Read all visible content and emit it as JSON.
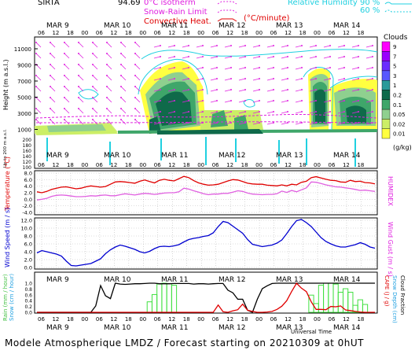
{
  "header": {
    "site": "SIRTA",
    "coords": "94.69",
    "isotherm_label": "0°C isotherm",
    "snow_rain_label": "Snow-Rain Limit",
    "convective_label": "Convective Heat.",
    "convective_unit": "(°C/minute)",
    "rh_label": "Relative Humidity",
    "rh_90": "90 %",
    "rh_60": "60 %"
  },
  "footer": "Modele Atmospherique LMDZ / Forecast starting on 20210309 at 0hUT",
  "xaxis": {
    "day_labels": [
      "MAR  9",
      "MAR 10",
      "MAR 11",
      "MAR 12",
      "MAR 13",
      "MAR 14"
    ],
    "hour_labels": [
      "06",
      "12",
      "18",
      "00",
      "06",
      "12",
      "18",
      "00",
      "06",
      "12",
      "18",
      "00",
      "06",
      "12",
      "18",
      "00",
      "06",
      "12",
      "18",
      "00",
      "06",
      "12",
      "18"
    ],
    "bottom_title": "Universal Time"
  },
  "panels": {
    "clouds": {
      "ylabel": "Height  (m a.s.l.)",
      "ylabel_low": "Up to 200 m a.s.l.",
      "yticks_upper": [
        "11000",
        "9000",
        "7000",
        "5000",
        "3000",
        "1000"
      ],
      "yticks_lower": [
        "200",
        "180",
        "160",
        "140",
        "120",
        "100"
      ],
      "colorbar_title": "Clouds",
      "colorbar_labels": [
        "9",
        "7",
        "5",
        "3",
        "1",
        "0.2",
        "0.1",
        "0.05",
        "0.02",
        "0.01"
      ],
      "colorbar_unit": "(g/kg)",
      "colorbar_colors": [
        "#ff00ff",
        "#9a00ff",
        "#6a2cff",
        "#5858ff",
        "#2a9a9a",
        "#0f6a4a",
        "#3fa66a",
        "#8fd08f",
        "#ccee66",
        "#ffff40"
      ]
    },
    "temperature": {
      "ylabel": "Temperature (°C)",
      "ylabel_right": "HUMIDEX",
      "yticks": [
        "8.0",
        "6.0",
        "4.0",
        "2.0",
        "0.0",
        "-2.0",
        "-4.0"
      ]
    },
    "wind": {
      "ylabel": "Wind Speed  (m / s)",
      "ylabel_right": "Wind Gust  (m / s)",
      "yticks": [
        "12.0",
        "10.0",
        "8.0",
        "6.0",
        "4.0",
        "2.0",
        "0.0"
      ]
    },
    "precip": {
      "ylabel_rain": "Rain (mm / hour)",
      "ylabel_snow": "Snow (cm / hour)",
      "ylabel_cape": "CAPE (J / g)",
      "ylabel_snowdepth": "Snow Depth (cm)",
      "ylabel_cloudfrac": "Cloud Fraction",
      "yticks": [
        "1.0",
        "0.8",
        "0.6",
        "0.4",
        "0.2",
        "0.0"
      ]
    }
  },
  "chart_data": [
    {
      "type": "line",
      "title": "",
      "xlabel": "",
      "ylabel": "Temperature (°C)",
      "ylim": [
        -4,
        8
      ],
      "series": [
        {
          "name": "Temperature",
          "color": "#e00000",
          "values": [
            2.3,
            2.0,
            2.4,
            3.0,
            3.4,
            3.7,
            3.8,
            3.5,
            3.2,
            3.4,
            3.8,
            4.1,
            3.9,
            3.7,
            3.9,
            4.6,
            5.3,
            5.4,
            5.3,
            5.1,
            4.9,
            5.5,
            5.9,
            5.4,
            5.0,
            5.8,
            6.1,
            5.8,
            5.6,
            6.3,
            7.0,
            6.6,
            5.7,
            5.0,
            4.6,
            4.3,
            4.4,
            4.6,
            5.1,
            5.6,
            6.0,
            5.9,
            5.4,
            4.9,
            4.7,
            4.6,
            4.6,
            4.3,
            4.2,
            4.1,
            4.4,
            4.1,
            4.6,
            4.4,
            5.2,
            5.5,
            6.6,
            6.9,
            6.5,
            6.1,
            5.8,
            5.7,
            5.3,
            5.2,
            5.8,
            5.4,
            5.5,
            5.1,
            5.0,
            4.7
          ]
        },
        {
          "name": "HUMIDEX",
          "color": "#e060e0",
          "values": [
            -0.2,
            0.0,
            0.3,
            0.9,
            1.2,
            1.3,
            1.2,
            1.0,
            0.8,
            0.8,
            0.9,
            1.1,
            1.0,
            1.2,
            1.3,
            1.1,
            1.1,
            1.4,
            1.7,
            1.5,
            1.3,
            1.6,
            1.8,
            1.7,
            1.5,
            1.7,
            1.9,
            2.0,
            2.0,
            2.3,
            3.4,
            3.1,
            2.6,
            2.2,
            1.7,
            1.4,
            1.6,
            1.6,
            1.8,
            1.8,
            2.2,
            2.6,
            2.4,
            1.9,
            1.6,
            1.5,
            1.4,
            1.5,
            1.5,
            1.7,
            2.5,
            2.1,
            2.7,
            2.3,
            2.9,
            3.5,
            5.3,
            5.2,
            4.8,
            4.4,
            4.1,
            3.8,
            3.7,
            3.5,
            3.3,
            3.0,
            2.7,
            2.8,
            2.6,
            2.4
          ]
        }
      ]
    },
    {
      "type": "line",
      "title": "",
      "xlabel": "",
      "ylabel": "Wind Speed  (m / s)",
      "ylim": [
        0,
        12
      ],
      "series": [
        {
          "name": "Wind Speed",
          "color": "#0000d0",
          "values": [
            3.7,
            4.3,
            4.0,
            3.7,
            3.4,
            2.9,
            1.6,
            0.5,
            0.4,
            0.6,
            0.8,
            1.0,
            1.6,
            2.2,
            3.5,
            4.5,
            5.2,
            5.7,
            5.4,
            5.0,
            4.6,
            4.0,
            3.7,
            4.1,
            4.8,
            5.3,
            5.4,
            5.3,
            5.5,
            5.8,
            6.5,
            7.1,
            7.4,
            7.6,
            7.9,
            8.1,
            8.8,
            10.4,
            11.7,
            11.4,
            10.5,
            9.6,
            8.7,
            7.1,
            5.9,
            5.6,
            5.3,
            5.5,
            5.7,
            6.2,
            7.0,
            8.6,
            10.4,
            11.9,
            12.2,
            11.4,
            10.4,
            9.0,
            7.6,
            6.6,
            6.0,
            5.5,
            5.2,
            5.2,
            5.5,
            5.8,
            6.3,
            5.9,
            5.2,
            4.9
          ]
        }
      ]
    },
    {
      "type": "bar",
      "title": "",
      "xlabel": "Universal Time",
      "ylabel": "Rain (mm / hour)",
      "ylim": [
        0,
        1
      ],
      "series": [
        {
          "name": "Rain",
          "color": "#40e040",
          "values": [
            0,
            0,
            0,
            0,
            0,
            0,
            0,
            0,
            0,
            0,
            0,
            0,
            0,
            0,
            0,
            0,
            0,
            0,
            0,
            0,
            0,
            0,
            0,
            0.36,
            0.61,
            0.97,
            1.0,
            0.98,
            0.93,
            0,
            0,
            0,
            0,
            0,
            0,
            0,
            0,
            0,
            0,
            0,
            0,
            0,
            0,
            0,
            0,
            0,
            0,
            0,
            0,
            0,
            0,
            0,
            0,
            0,
            0,
            0,
            0.59,
            0.3,
            0.93,
            1.0,
            1.0,
            0.97,
            0.69,
            0.81,
            0.69,
            0.24,
            0.43,
            0.27,
            0,
            0
          ]
        },
        {
          "name": "Cloud Fraction",
          "color": "#000000",
          "values": [
            0,
            0,
            0,
            0,
            0,
            0,
            0,
            0,
            0,
            0,
            0,
            0,
            0.22,
            0.92,
            0.57,
            0.47,
            1.0,
            0.97,
            0.96,
            0.97,
            0.98,
            0.98,
            0.99,
            1.0,
            1.0,
            0.98,
            0.98,
            0.98,
            0.99,
            0.99,
            0.99,
            0.99,
            0.97,
            0.98,
            0.98,
            0.97,
            0.98,
            0.99,
            0.99,
            0.76,
            0.67,
            0.45,
            0.45,
            0.07,
            0.0,
            0.45,
            0.81,
            0.91,
            0.99,
            1.0,
            1.0,
            1.0,
            1.0,
            1.0,
            1.0,
            1.0,
            1.0,
            1.0,
            1.0,
            1.0,
            1.0,
            1.0,
            1.0,
            1.0,
            1.0,
            1.0,
            1.0,
            1.0,
            1.0,
            1.0
          ]
        },
        {
          "name": "CAPE",
          "color": "#e00000",
          "values": [
            0,
            0,
            0,
            0,
            0,
            0,
            0,
            0,
            0,
            0,
            0,
            0,
            0,
            0,
            0,
            0,
            0,
            0,
            0,
            0,
            0,
            0,
            0,
            0,
            0,
            0,
            0,
            0,
            0,
            0,
            0,
            0,
            0,
            0,
            0,
            0,
            0,
            0.25,
            0.02,
            0,
            0.05,
            0.09,
            0.28,
            0.07,
            0.03,
            0.0,
            0.0,
            0.01,
            0.03,
            0.1,
            0.21,
            0.4,
            0.72,
            1.0,
            0.83,
            0.71,
            0.36,
            0.1,
            0.1,
            0.09,
            0.2,
            0.19,
            0.22,
            0.08,
            0.06,
            0.03,
            0.01,
            0.0,
            0.0,
            0.0
          ]
        }
      ]
    }
  ]
}
